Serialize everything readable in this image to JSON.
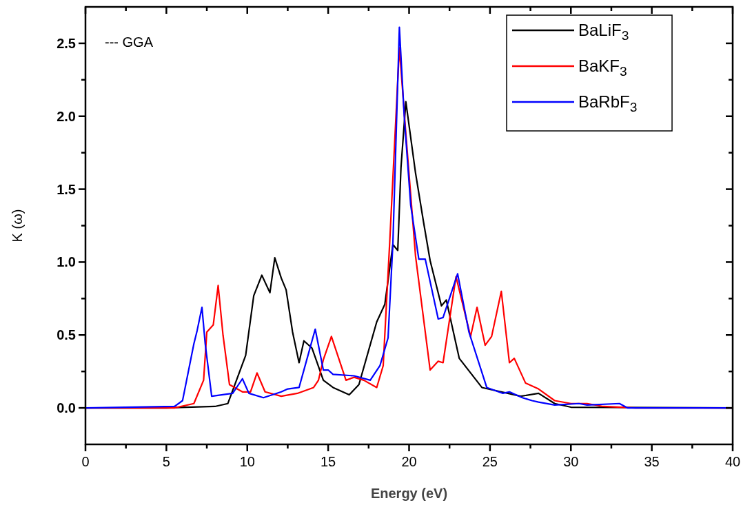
{
  "chart_data": {
    "type": "line",
    "xlabel": "Energy (eV)",
    "ylabel": "K (ω)",
    "xlim": [
      0,
      40
    ],
    "ylim": [
      -0.25,
      2.75
    ],
    "xticks": [
      0,
      5,
      10,
      15,
      20,
      25,
      30,
      35,
      40
    ],
    "yticks": [
      {
        "value": 0,
        "label": "0.0"
      },
      {
        "value": 0.5,
        "label": "0.5"
      },
      {
        "value": 1,
        "label": "1.0"
      },
      {
        "value": 1.5,
        "label": "1.5"
      },
      {
        "value": 2,
        "label": "2.0"
      },
      {
        "value": 2.5,
        "label": "2.5"
      }
    ],
    "grid": false,
    "legend": "top right",
    "marker": "none",
    "line_style": "solid",
    "annotations": [
      "--- GGA"
    ],
    "series": [
      {
        "name": "BaLiF$_{3}$",
        "color": "#000000",
        "x": [
          0,
          5,
          8,
          8.8,
          9.9,
          10.4,
          10.9,
          11.4,
          11.7,
          12.1,
          12.4,
          12.8,
          13.2,
          13.5,
          14.0,
          14.7,
          15.3,
          16.3,
          16.9,
          18.0,
          18.5,
          19.0,
          19.3,
          19.5,
          19.8,
          20.4,
          20.9,
          21.3,
          22.0,
          22.3,
          23.1,
          24.5,
          26.9,
          28.0,
          29,
          30,
          40
        ],
        "values": [
          0,
          0,
          0.01,
          0.03,
          0.36,
          0.77,
          0.91,
          0.79,
          1.03,
          0.89,
          0.81,
          0.52,
          0.31,
          0.46,
          0.41,
          0.19,
          0.14,
          0.09,
          0.16,
          0.59,
          0.71,
          1.12,
          1.08,
          1.65,
          2.1,
          1.61,
          1.27,
          1.01,
          0.7,
          0.74,
          0.34,
          0.14,
          0.08,
          0.1,
          0.03,
          0.005,
          0
        ]
      },
      {
        "name": "BaKF$_{3}$",
        "color": "#ff0000",
        "x": [
          0,
          5.5,
          6.7,
          7.3,
          7.5,
          7.9,
          8.2,
          8.5,
          8.9,
          9.7,
          10.2,
          10.6,
          11.1,
          12.1,
          13.1,
          14.1,
          14.4,
          14.7,
          15.2,
          16.1,
          16.6,
          17.2,
          18.0,
          18.4,
          18.8,
          19.4,
          19.8,
          20.4,
          21.3,
          21.8,
          22.1,
          22.9,
          23.8,
          24.2,
          24.7,
          25.1,
          25.7,
          26.2,
          26.5,
          27.2,
          28.0,
          29,
          30,
          31,
          32,
          34,
          40
        ],
        "values": [
          0,
          0,
          0.03,
          0.19,
          0.52,
          0.57,
          0.84,
          0.5,
          0.16,
          0.11,
          0.11,
          0.24,
          0.11,
          0.08,
          0.1,
          0.14,
          0.19,
          0.33,
          0.49,
          0.19,
          0.21,
          0.19,
          0.14,
          0.29,
          1.13,
          2.47,
          1.88,
          1.04,
          0.26,
          0.32,
          0.31,
          0.9,
          0.49,
          0.69,
          0.43,
          0.49,
          0.8,
          0.31,
          0.34,
          0.17,
          0.13,
          0.05,
          0.03,
          0.03,
          0.01,
          0,
          0
        ]
      },
      {
        "name": "BaRbF$_{3}$",
        "color": "#0000ff",
        "x": [
          0,
          5.5,
          6.0,
          6.7,
          6.9,
          7.2,
          7.4,
          7.8,
          9.1,
          9.7,
          10.1,
          11.0,
          12.1,
          12.5,
          13.2,
          13.6,
          14.2,
          14.7,
          15.0,
          15.3,
          16.6,
          17.6,
          18.2,
          18.7,
          19.0,
          19.4,
          19.7,
          20.1,
          20.6,
          21.0,
          21.8,
          22.1,
          23.0,
          23.7,
          24.8,
          25.8,
          26.2,
          27.0,
          27.6,
          28,
          29,
          30.5,
          31,
          33,
          33.5,
          40
        ],
        "values": [
          0,
          0.01,
          0.05,
          0.44,
          0.53,
          0.69,
          0.44,
          0.08,
          0.1,
          0.2,
          0.1,
          0.07,
          0.11,
          0.13,
          0.14,
          0.3,
          0.54,
          0.26,
          0.26,
          0.23,
          0.22,
          0.19,
          0.29,
          0.48,
          1.13,
          2.61,
          2.0,
          1.39,
          1.02,
          1.02,
          0.61,
          0.62,
          0.92,
          0.52,
          0.14,
          0.1,
          0.11,
          0.07,
          0.05,
          0.04,
          0.02,
          0.03,
          0.02,
          0.03,
          0,
          0
        ]
      }
    ]
  }
}
